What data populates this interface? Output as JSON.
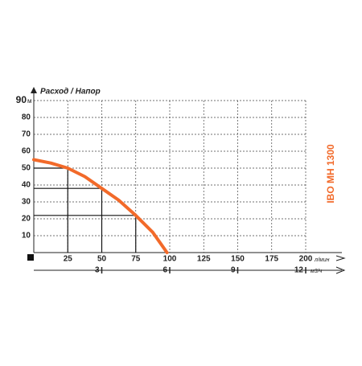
{
  "chart_data": {
    "type": "line",
    "title": "IBO MH 1300",
    "axis_label": "Расход / Напор",
    "x": [
      0,
      12.5,
      25,
      37.5,
      50,
      62.5,
      75,
      87.5,
      98
    ],
    "series": [
      {
        "color": "#f26a2a",
        "values": [
          55,
          53,
          50,
          45,
          38,
          31,
          22,
          12,
          0
        ]
      }
    ],
    "guide_points": [
      2,
      4,
      6
    ],
    "xlim": [
      0,
      200
    ],
    "xticks": [
      25,
      50,
      75,
      100,
      125,
      150,
      175,
      200
    ],
    "x_unit": "л/мин",
    "x2lim": [
      0,
      12
    ],
    "x2ticks": [
      3,
      6,
      9,
      12
    ],
    "x2_unit": "м3/ч",
    "ylim": [
      0,
      90
    ],
    "yticks": [
      10,
      20,
      30,
      40,
      50,
      60,
      70,
      80,
      90
    ],
    "y_unit": "м",
    "grid": true
  }
}
